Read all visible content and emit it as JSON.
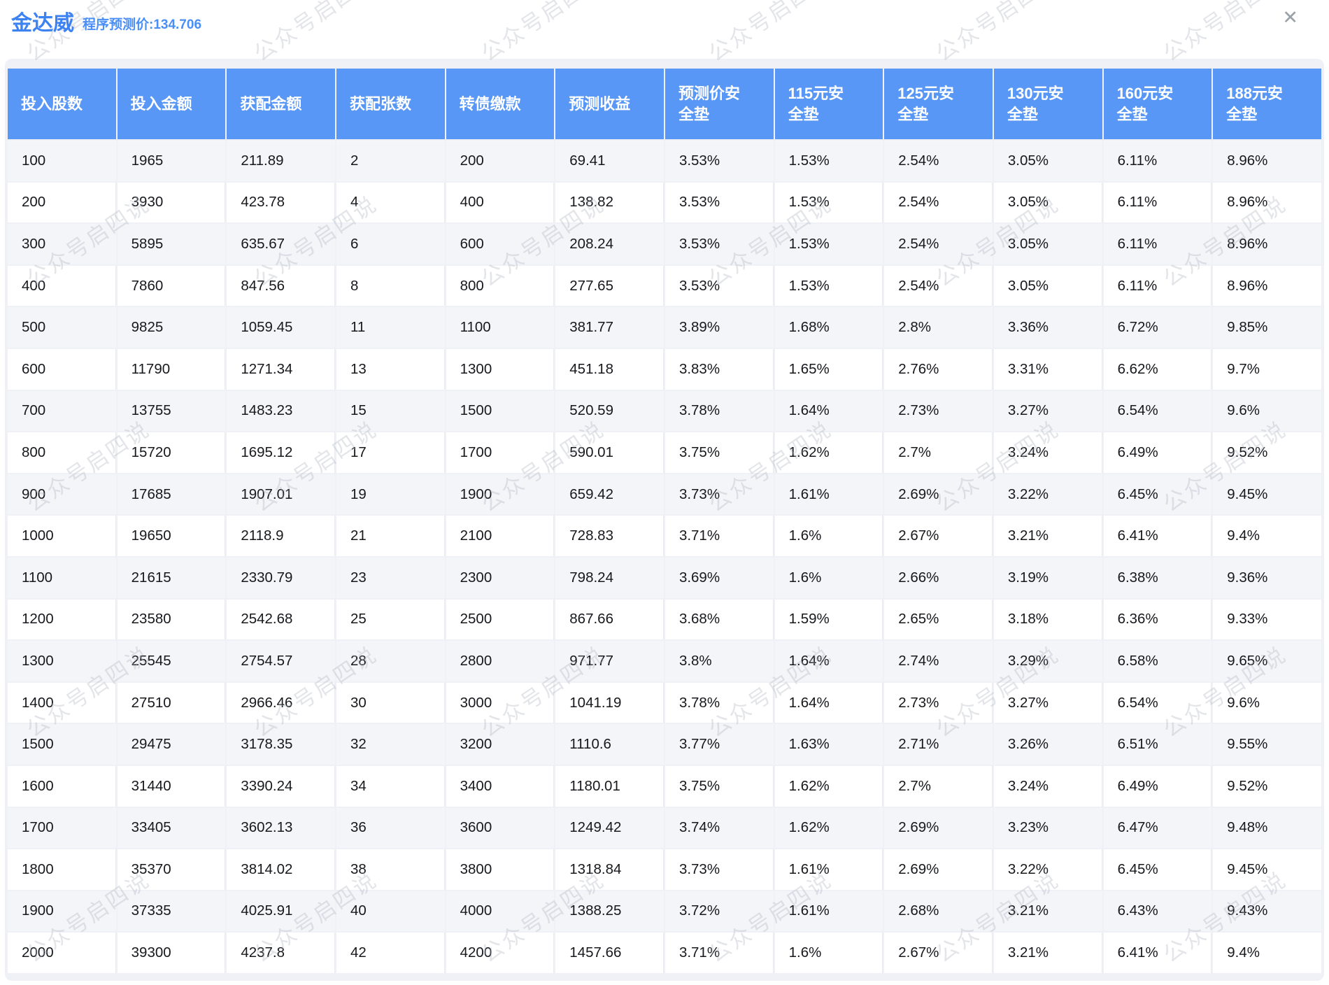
{
  "header": {
    "title": "金达威",
    "subtitle": "程序预测价:134.706",
    "close_icon": "✕"
  },
  "watermark": {
    "text": "公众号启四说"
  },
  "colors": {
    "accent_blue": "#3c82f2",
    "header_blue": "#5897f6",
    "alt_row_bg": "#f4f5f9",
    "watermark_gray": "#aeb4bf"
  },
  "table": {
    "columns": [
      "投入股数",
      "投入金额",
      "获配金额",
      "获配张数",
      "转债缴款",
      "预测收益",
      "预测价安全垫",
      "115元安全垫",
      "125元安全垫",
      "130元安全垫",
      "160元安全垫",
      "188元安全垫"
    ],
    "rows": [
      [
        "100",
        "1965",
        "211.89",
        "2",
        "200",
        "69.41",
        "3.53%",
        "1.53%",
        "2.54%",
        "3.05%",
        "6.11%",
        "8.96%"
      ],
      [
        "200",
        "3930",
        "423.78",
        "4",
        "400",
        "138.82",
        "3.53%",
        "1.53%",
        "2.54%",
        "3.05%",
        "6.11%",
        "8.96%"
      ],
      [
        "300",
        "5895",
        "635.67",
        "6",
        "600",
        "208.24",
        "3.53%",
        "1.53%",
        "2.54%",
        "3.05%",
        "6.11%",
        "8.96%"
      ],
      [
        "400",
        "7860",
        "847.56",
        "8",
        "800",
        "277.65",
        "3.53%",
        "1.53%",
        "2.54%",
        "3.05%",
        "6.11%",
        "8.96%"
      ],
      [
        "500",
        "9825",
        "1059.45",
        "11",
        "1100",
        "381.77",
        "3.89%",
        "1.68%",
        "2.8%",
        "3.36%",
        "6.72%",
        "9.85%"
      ],
      [
        "600",
        "11790",
        "1271.34",
        "13",
        "1300",
        "451.18",
        "3.83%",
        "1.65%",
        "2.76%",
        "3.31%",
        "6.62%",
        "9.7%"
      ],
      [
        "700",
        "13755",
        "1483.23",
        "15",
        "1500",
        "520.59",
        "3.78%",
        "1.64%",
        "2.73%",
        "3.27%",
        "6.54%",
        "9.6%"
      ],
      [
        "800",
        "15720",
        "1695.12",
        "17",
        "1700",
        "590.01",
        "3.75%",
        "1.62%",
        "2.7%",
        "3.24%",
        "6.49%",
        "9.52%"
      ],
      [
        "900",
        "17685",
        "1907.01",
        "19",
        "1900",
        "659.42",
        "3.73%",
        "1.61%",
        "2.69%",
        "3.22%",
        "6.45%",
        "9.45%"
      ],
      [
        "1000",
        "19650",
        "2118.9",
        "21",
        "2100",
        "728.83",
        "3.71%",
        "1.6%",
        "2.67%",
        "3.21%",
        "6.41%",
        "9.4%"
      ],
      [
        "1100",
        "21615",
        "2330.79",
        "23",
        "2300",
        "798.24",
        "3.69%",
        "1.6%",
        "2.66%",
        "3.19%",
        "6.38%",
        "9.36%"
      ],
      [
        "1200",
        "23580",
        "2542.68",
        "25",
        "2500",
        "867.66",
        "3.68%",
        "1.59%",
        "2.65%",
        "3.18%",
        "6.36%",
        "9.33%"
      ],
      [
        "1300",
        "25545",
        "2754.57",
        "28",
        "2800",
        "971.77",
        "3.8%",
        "1.64%",
        "2.74%",
        "3.29%",
        "6.58%",
        "9.65%"
      ],
      [
        "1400",
        "27510",
        "2966.46",
        "30",
        "3000",
        "1041.19",
        "3.78%",
        "1.64%",
        "2.73%",
        "3.27%",
        "6.54%",
        "9.6%"
      ],
      [
        "1500",
        "29475",
        "3178.35",
        "32",
        "3200",
        "1110.6",
        "3.77%",
        "1.63%",
        "2.71%",
        "3.26%",
        "6.51%",
        "9.55%"
      ],
      [
        "1600",
        "31440",
        "3390.24",
        "34",
        "3400",
        "1180.01",
        "3.75%",
        "1.62%",
        "2.7%",
        "3.24%",
        "6.49%",
        "9.52%"
      ],
      [
        "1700",
        "33405",
        "3602.13",
        "36",
        "3600",
        "1249.42",
        "3.74%",
        "1.62%",
        "2.69%",
        "3.23%",
        "6.47%",
        "9.48%"
      ],
      [
        "1800",
        "35370",
        "3814.02",
        "38",
        "3800",
        "1318.84",
        "3.73%",
        "1.61%",
        "2.69%",
        "3.22%",
        "6.45%",
        "9.45%"
      ],
      [
        "1900",
        "37335",
        "4025.91",
        "40",
        "4000",
        "1388.25",
        "3.72%",
        "1.61%",
        "2.68%",
        "3.21%",
        "6.43%",
        "9.43%"
      ],
      [
        "2000",
        "39300",
        "4237.8",
        "42",
        "4200",
        "1457.66",
        "3.71%",
        "1.6%",
        "2.67%",
        "3.21%",
        "6.41%",
        "9.4%"
      ]
    ]
  }
}
